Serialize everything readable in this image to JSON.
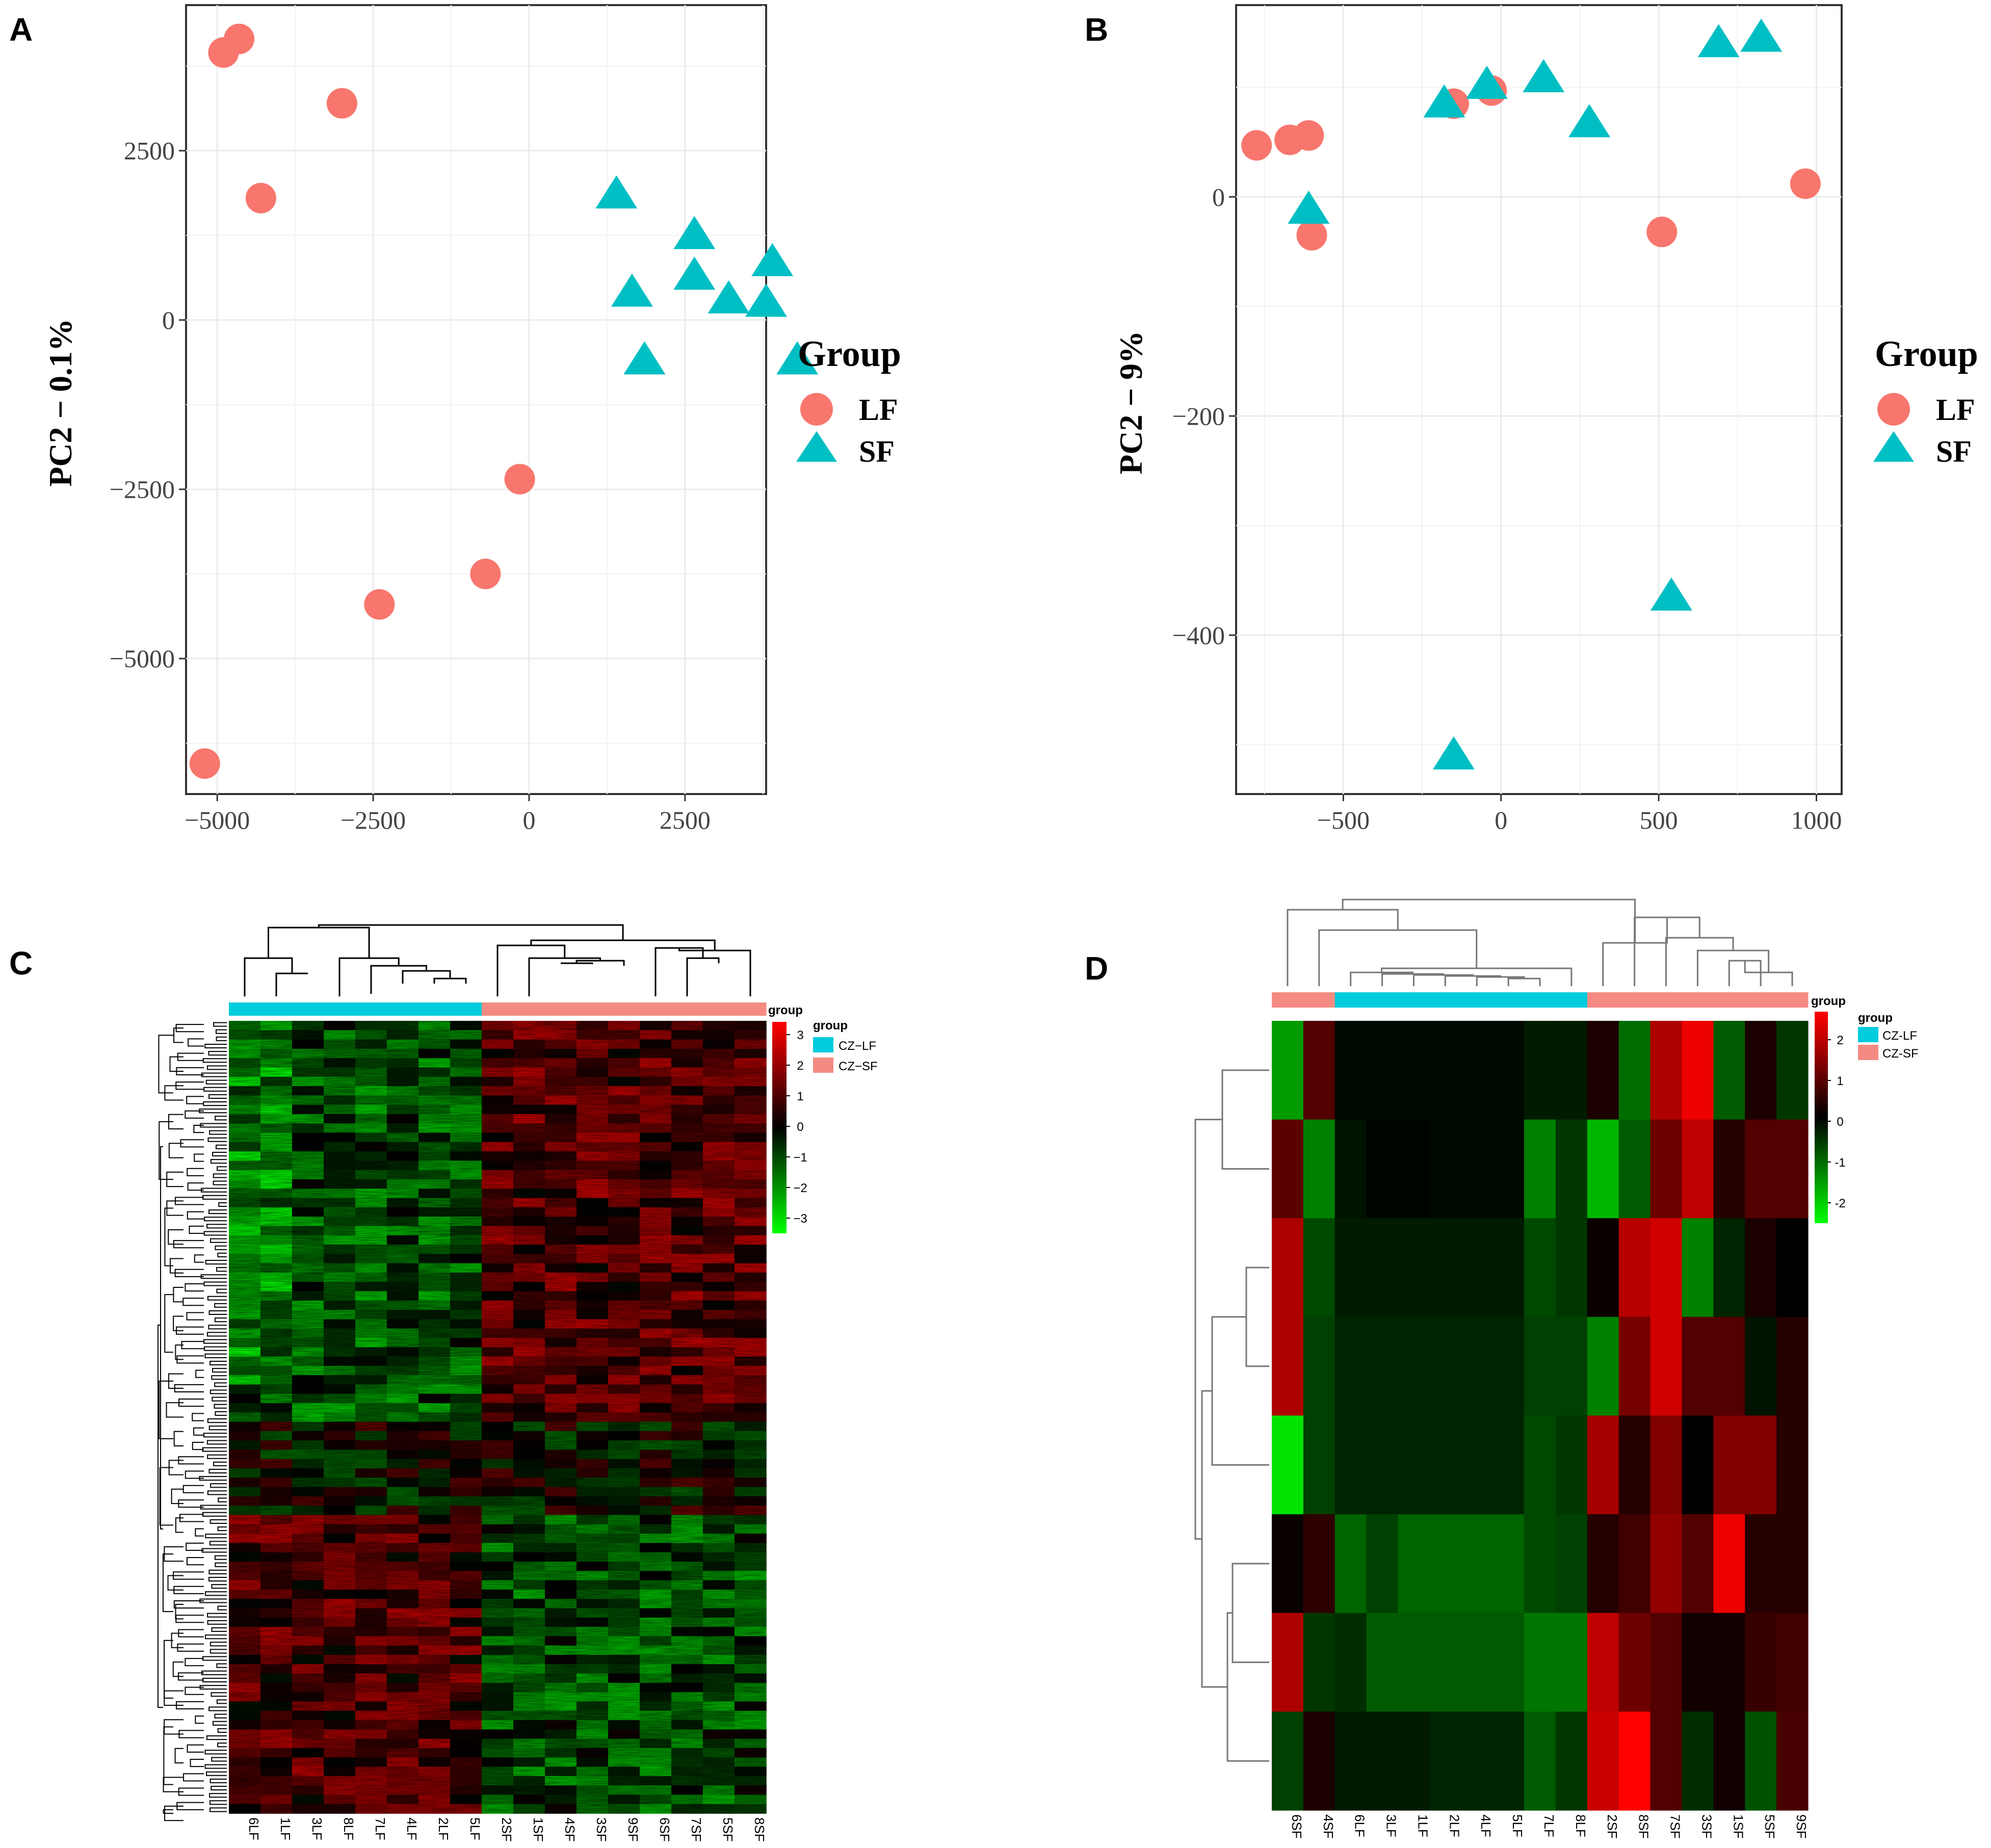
{
  "panels": {
    "a": "A",
    "b": "B",
    "c": "C",
    "d": "D"
  },
  "colors": {
    "lf": "#F8766D",
    "sf": "#00BFC4",
    "cz_lf": "#00CCDD",
    "cz_sf": "#F48B82"
  },
  "chart_data": [
    {
      "id": "A",
      "type": "scatter",
      "ylabel": "PC2 − 0.1%",
      "xlim": [
        -5500,
        3800
      ],
      "ylim": [
        -7000,
        4650
      ],
      "x_ticks": [
        {
          "v": -5000,
          "t": "−5000"
        },
        {
          "v": -2500,
          "t": "−2500"
        },
        {
          "v": 0,
          "t": "0"
        },
        {
          "v": 2500,
          "t": "2500"
        }
      ],
      "y_ticks": [
        {
          "v": 2500,
          "t": "2500"
        },
        {
          "v": 0,
          "t": "0"
        },
        {
          "v": -2500,
          "t": "−2500"
        },
        {
          "v": -5000,
          "t": "−5000"
        }
      ],
      "legend_title": "Group",
      "legend": [
        "LF",
        "SF"
      ],
      "series": [
        {
          "name": "LF",
          "shape": "circle",
          "points": [
            [
              -4900,
              3950
            ],
            [
              -4650,
              4150
            ],
            [
              -4300,
              1800
            ],
            [
              -3000,
              3200
            ],
            [
              -2400,
              -4200
            ],
            [
              -700,
              -3750
            ],
            [
              -150,
              -2350
            ],
            [
              -5200,
              -6550
            ]
          ]
        },
        {
          "name": "SF",
          "shape": "triangle",
          "points": [
            [
              1400,
              1850
            ],
            [
              1650,
              400
            ],
            [
              1850,
              -600
            ],
            [
              2650,
              1250
            ],
            [
              2650,
              650
            ],
            [
              3200,
              300
            ],
            [
              3900,
              850
            ],
            [
              3800,
              250
            ],
            [
              4300,
              -600
            ]
          ]
        }
      ]
    },
    {
      "id": "B",
      "type": "scatter",
      "ylabel": "PC2 − 9%",
      "xlim": [
        -840,
        1080
      ],
      "ylim": [
        -545,
        175
      ],
      "x_ticks": [
        {
          "v": -500,
          "t": "−500"
        },
        {
          "v": 0,
          "t": "0"
        },
        {
          "v": 500,
          "t": "500"
        },
        {
          "v": 1000,
          "t": "1000"
        }
      ],
      "y_ticks": [
        {
          "v": 0,
          "t": "0"
        },
        {
          "v": -200,
          "t": "−200"
        },
        {
          "v": -400,
          "t": "−400"
        }
      ],
      "legend_title": "Group",
      "legend": [
        "LF",
        "SF"
      ],
      "series": [
        {
          "name": "LF",
          "shape": "circle",
          "points": [
            [
              -775,
              47
            ],
            [
              -670,
              52
            ],
            [
              -610,
              56
            ],
            [
              -600,
              -35
            ],
            [
              -150,
              85
            ],
            [
              -30,
              97
            ],
            [
              510,
              -32
            ],
            [
              965,
              12
            ]
          ]
        },
        {
          "name": "SF",
          "shape": "triangle",
          "points": [
            [
              -610,
              -12
            ],
            [
              -180,
              85
            ],
            [
              -45,
              102
            ],
            [
              135,
              108
            ],
            [
              280,
              67
            ],
            [
              540,
              -365
            ],
            [
              -150,
              -510
            ],
            [
              690,
              140
            ],
            [
              825,
              145
            ]
          ]
        }
      ]
    },
    {
      "id": "C",
      "type": "heatmap",
      "columns": [
        "6LF",
        "1LF",
        "3LF",
        "8LF",
        "7LF",
        "4LF",
        "2LF",
        "5LF",
        "2SF",
        "1SF",
        "4SF",
        "3SF",
        "9SF",
        "6SF",
        "7SF",
        "5SF",
        "8SF"
      ],
      "group_colors": [
        "cz_lf",
        "cz_lf",
        "cz_lf",
        "cz_lf",
        "cz_lf",
        "cz_lf",
        "cz_lf",
        "cz_lf",
        "cz_sf",
        "cz_sf",
        "cz_sf",
        "cz_sf",
        "cz_sf",
        "cz_sf",
        "cz_sf",
        "cz_sf",
        "cz_sf"
      ],
      "legend_title": "group",
      "annotation_title": "group",
      "legend": [
        "CZ−LF",
        "CZ−SF"
      ],
      "scale_ticks": [
        "3",
        "2",
        "1",
        "0",
        "−1",
        "−2",
        "−3"
      ]
    },
    {
      "id": "D",
      "type": "heatmap",
      "columns": [
        "6SF",
        "4SF",
        "6LF",
        "3LF",
        "1LF",
        "2LF",
        "4LF",
        "5LF",
        "7LF",
        "8LF",
        "2SF",
        "8SF",
        "7SF",
        "3SF",
        "1SF",
        "5SF",
        "9SF"
      ],
      "group_colors": [
        "cz_sf",
        "cz_sf",
        "cz_lf",
        "cz_lf",
        "cz_lf",
        "cz_lf",
        "cz_lf",
        "cz_lf",
        "cz_lf",
        "cz_lf",
        "cz_sf",
        "cz_sf",
        "cz_sf",
        "cz_sf",
        "cz_sf",
        "cz_sf",
        "cz_sf"
      ],
      "legend_title": "group",
      "annotation_title": "group",
      "legend": [
        "CZ-LF",
        "CZ-SF"
      ],
      "scale_ticks": [
        "2",
        "1",
        "0",
        "-1",
        "-2"
      ],
      "values": [
        [
          -1.7,
          0.9,
          -0.1,
          -0.1,
          -0.1,
          -0.1,
          -0.1,
          -0.1,
          -0.3,
          -0.3,
          0.3,
          -1.2,
          1.9,
          2.6,
          -1.0,
          0.3,
          -0.6
        ],
        [
          1.0,
          -1.4,
          -0.2,
          -0.05,
          -0.05,
          -0.1,
          -0.1,
          -0.1,
          -1.4,
          -0.6,
          -2.0,
          -1.0,
          1.2,
          2.1,
          0.4,
          0.9,
          0.9
        ],
        [
          1.9,
          -0.8,
          -0.3,
          -0.3,
          -0.3,
          -0.3,
          -0.3,
          -0.3,
          -0.8,
          -0.6,
          0.1,
          2.0,
          2.3,
          -1.4,
          -0.4,
          0.3,
          0.0
        ],
        [
          1.9,
          -0.7,
          -0.4,
          -0.4,
          -0.4,
          -0.4,
          -0.4,
          -0.4,
          -0.7,
          -0.7,
          -1.4,
          1.3,
          2.3,
          0.9,
          0.9,
          -0.2,
          0.4
        ],
        [
          -2.5,
          -0.7,
          -0.4,
          -0.4,
          -0.4,
          -0.4,
          -0.4,
          -0.4,
          -0.8,
          -0.6,
          1.8,
          0.4,
          1.4,
          0.0,
          1.4,
          1.4,
          0.4
        ],
        [
          0.1,
          0.5,
          -1.1,
          -0.7,
          -1.1,
          -1.1,
          -1.1,
          -1.1,
          -0.8,
          -0.7,
          0.4,
          0.7,
          1.6,
          0.9,
          2.6,
          0.4,
          0.4
        ],
        [
          1.9,
          -0.6,
          -0.5,
          -1.0,
          -1.0,
          -1.0,
          -1.0,
          -1.0,
          -1.3,
          -1.3,
          2.1,
          1.2,
          0.9,
          0.2,
          0.2,
          0.6,
          0.7
        ],
        [
          -0.7,
          0.3,
          -0.3,
          -0.3,
          -0.3,
          -0.4,
          -0.4,
          -0.4,
          -1.0,
          -0.6,
          2.2,
          2.8,
          0.9,
          -0.5,
          0.2,
          -0.9,
          0.8
        ]
      ]
    }
  ]
}
